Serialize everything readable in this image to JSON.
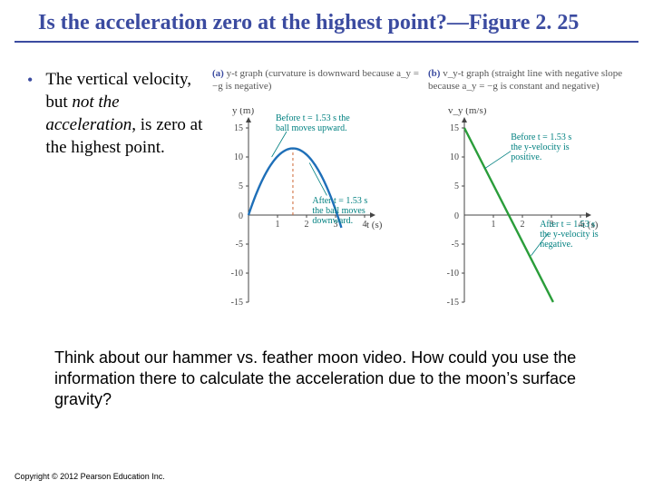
{
  "title": "Is the acceleration zero at the highest point?—Figure 2. 25",
  "bullet": {
    "mark": "•",
    "text_pre": "The vertical velocity, but ",
    "text_em": "not the acceleration",
    "text_post": ", is zero at the highest point."
  },
  "figA": {
    "label": "(a)",
    "caption_html": "y-t graph (curvature is downward because a_y = −g is negative)",
    "ylabel": "y (m)",
    "xlabel": "t (s)",
    "yticks": [
      -15,
      -10,
      -5,
      0,
      5,
      10,
      15
    ],
    "xticks": [
      1,
      2,
      3,
      4
    ],
    "curve_color": "#1e6fb8",
    "axis_color": "#444444",
    "dash_color": "#cc6633",
    "callout1": "Before t = 1.53 s the ball moves upward.",
    "callout2": "After t = 1.53 s the ball moves downward.",
    "peak_t": 1.53,
    "peak_y": 11.5,
    "xlim": [
      0,
      4
    ],
    "ylim": [
      -15,
      15
    ]
  },
  "figB": {
    "label": "(b)",
    "caption_html": "v_y-t graph (straight line with negative slope because a_y = −g is constant and negative)",
    "ylabel": "v_y (m/s)",
    "xlabel": "t (s)",
    "yticks": [
      -15,
      -10,
      -5,
      0,
      5,
      10,
      15
    ],
    "xticks": [
      1,
      2,
      3,
      4
    ],
    "line_color": "#2a9d3a",
    "axis_color": "#444444",
    "callout1": "Before t = 1.53 s the y-velocity is positive.",
    "callout2": "After t = 1.53 s the y-velocity is negative.",
    "t_zero": 1.53,
    "v0": 15,
    "slope": -9.8,
    "xlim": [
      0,
      4
    ],
    "ylim": [
      -15,
      15
    ]
  },
  "bottom": "Think about our hammer vs. feather moon video.  How could you use the information there to calculate the acceleration due to the moon’s surface gravity?",
  "copyright": "Copyright © 2012 Pearson Education Inc."
}
